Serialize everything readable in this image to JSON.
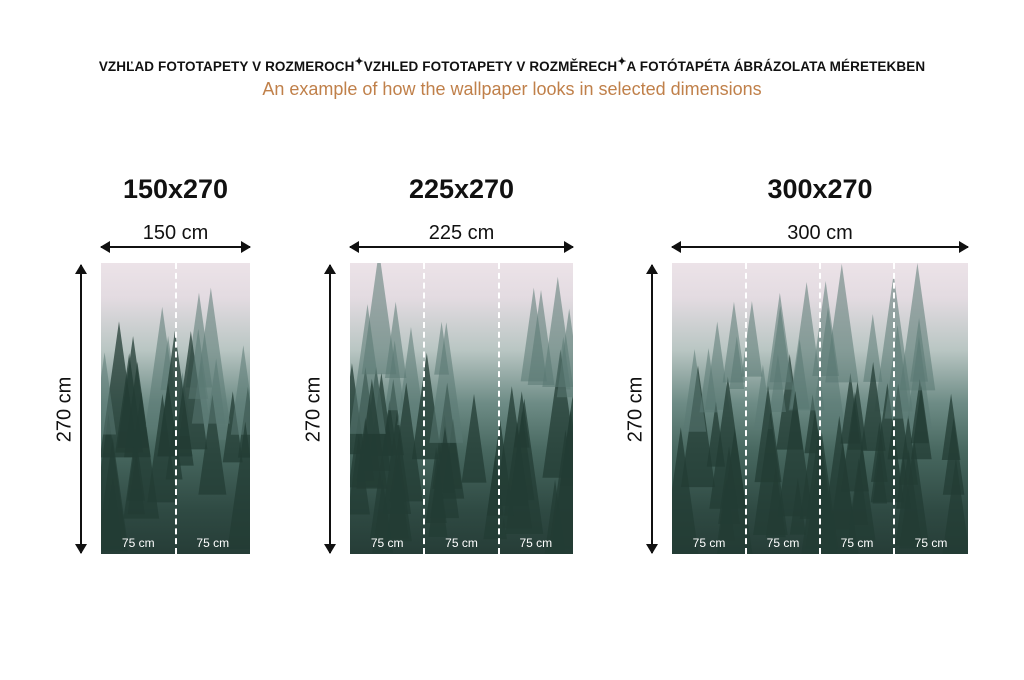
{
  "header": {
    "languages_line": [
      "VZHĽAD FOTOTAPETY V ROZMEROCH",
      "VZHLED FOTOTAPETY V ROZMĚRECH",
      "A FOTÓTAPÉTA ÁBRÁZOLATA MÉRETEKBEN"
    ],
    "subtitle": "An example of how the wallpaper looks in selected dimensions",
    "subtitle_color": "#c0804a"
  },
  "variants": [
    {
      "title": "150x270",
      "width_label": "150 cm",
      "height_label": "270 cm",
      "strips": [
        "75 cm",
        "75 cm"
      ]
    },
    {
      "title": "225x270",
      "width_label": "225 cm",
      "height_label": "270 cm",
      "strips": [
        "75 cm",
        "75 cm",
        "75 cm"
      ]
    },
    {
      "title": "300x270",
      "width_label": "300 cm",
      "height_label": "270 cm",
      "strips": [
        "75 cm",
        "75 cm",
        "75 cm",
        "75 cm"
      ]
    }
  ],
  "image_subject": "misty-pine-forest"
}
